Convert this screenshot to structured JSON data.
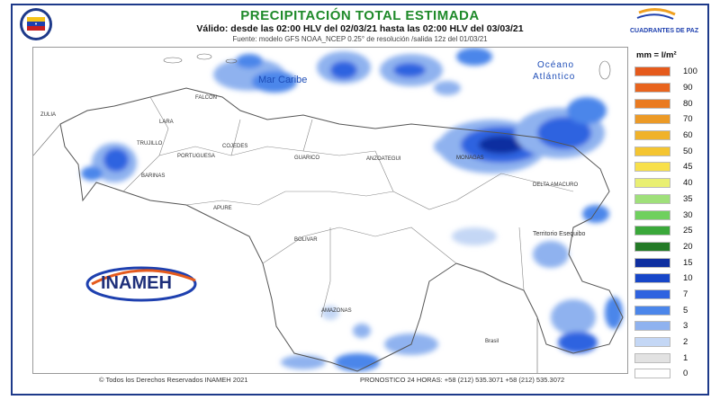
{
  "header": {
    "title": "PRECIPITACIÓN TOTAL ESTIMADA",
    "subtitle": "Válido: desde las 02:00 HLV del 02/03/21 hasta las 02:00 HLV del 03/03/21",
    "source": "Fuente: modelo GFS NOAA_NCEP 0.25° de resolución /salida 12z del 01/03/21",
    "right_logo_text": "CUADRANTES DE PAZ"
  },
  "map": {
    "sea_label": "Mar Caribe",
    "ocean_label_1": "Océano",
    "ocean_label_2": "Atlántico",
    "territory_label": "Territorio Esequibo",
    "brasil_label": "Brasil",
    "agency_logo": "INAMEH",
    "region_labels": [
      "ZULIA",
      "TRUJILLO",
      "PORTUGUESA",
      "COJEDES",
      "GUARICO",
      "ANZOATEGUI",
      "APURE",
      "BOLIVAR",
      "AMAZONAS",
      "FALCON",
      "LARA",
      "BARINAS",
      "MONAGAS",
      "DELTA AMACURO"
    ]
  },
  "legend": {
    "title": "mm = l/m²",
    "items": [
      {
        "label": "100",
        "color": "#e55a1c"
      },
      {
        "label": "90",
        "color": "#e8641e"
      },
      {
        "label": "80",
        "color": "#ea7a20"
      },
      {
        "label": "70",
        "color": "#ec9a26"
      },
      {
        "label": "60",
        "color": "#f0b22a"
      },
      {
        "label": "50",
        "color": "#f4c531"
      },
      {
        "label": "45",
        "color": "#f8e04a"
      },
      {
        "label": "40",
        "color": "#e9ef72"
      },
      {
        "label": "35",
        "color": "#9fe07a"
      },
      {
        "label": "30",
        "color": "#6fd05e"
      },
      {
        "label": "25",
        "color": "#3aa83a"
      },
      {
        "label": "20",
        "color": "#237a26"
      },
      {
        "label": "15",
        "color": "#0f2fa0"
      },
      {
        "label": "10",
        "color": "#1746c8"
      },
      {
        "label": "7",
        "color": "#2f63e0"
      },
      {
        "label": "5",
        "color": "#4b86ea"
      },
      {
        "label": "3",
        "color": "#8fb2ef"
      },
      {
        "label": "2",
        "color": "#c4d7f5"
      },
      {
        "label": "1",
        "color": "#e2e2e2"
      },
      {
        "label": "0",
        "color": "#ffffff"
      }
    ]
  },
  "footer": {
    "copyright": "© Todos los Derechos Reservados INAMEH 2021",
    "phone": "PRONOSTICO 24 HORAS: +58 (212) 535.3071 +58 (212) 535.3072"
  }
}
